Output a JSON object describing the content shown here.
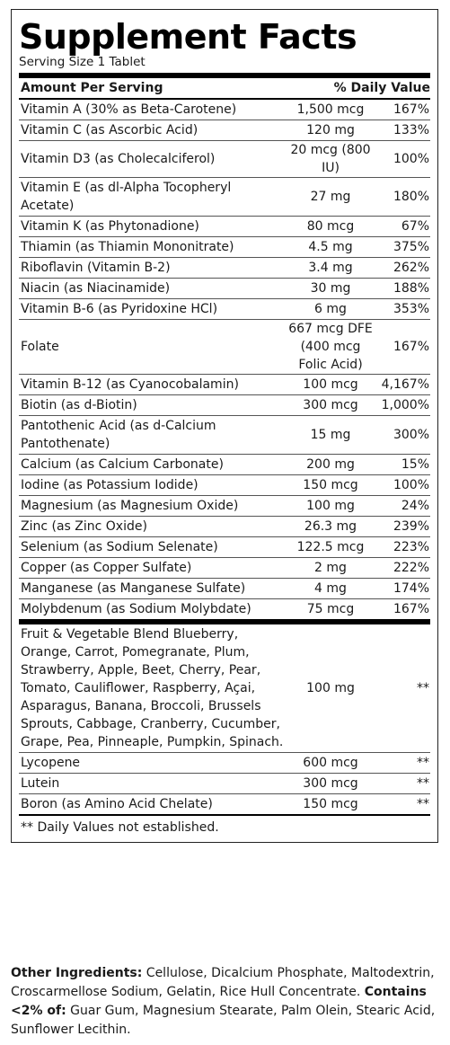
{
  "title": "Supplement Facts",
  "serving_size": "Serving Size 1 Tablet",
  "header": {
    "amount_label": "Amount Per Serving",
    "dv_label": "% Daily Value"
  },
  "nutrients": [
    {
      "name": "Vitamin A (30% as Beta-Carotene)",
      "amount": "1,500 mcg",
      "dv": "167%"
    },
    {
      "name": "Vitamin C (as Ascorbic Acid)",
      "amount": "120 mg",
      "dv": "133%"
    },
    {
      "name": "Vitamin D3 (as Cholecalciferol)",
      "amount": "20 mcg (800 IU)",
      "dv": "100%"
    },
    {
      "name": "Vitamin E (as dl-Alpha Tocopheryl Acetate)",
      "amount": "27 mg",
      "dv": "180%"
    },
    {
      "name": "Vitamin K (as Phytonadione)",
      "amount": "80 mcg",
      "dv": "67%"
    },
    {
      "name": "Thiamin (as Thiamin Mononitrate)",
      "amount": "4.5 mg",
      "dv": "375%"
    },
    {
      "name": "Riboflavin (Vitamin B-2)",
      "amount": "3.4 mg",
      "dv": "262%"
    },
    {
      "name": "Niacin (as Niacinamide)",
      "amount": "30 mg",
      "dv": "188%"
    },
    {
      "name": "Vitamin B-6 (as Pyridoxine HCl)",
      "amount": "6 mg",
      "dv": "353%"
    },
    {
      "name": "Folate",
      "amount": "667 mcg DFE (400 mcg Folic Acid)",
      "dv": "167%"
    },
    {
      "name": "Vitamin B-12 (as Cyanocobalamin)",
      "amount": "100 mcg",
      "dv": "4,167%"
    },
    {
      "name": "Biotin (as d-Biotin)",
      "amount": "300 mcg",
      "dv": "1,000%"
    },
    {
      "name": "Pantothenic Acid (as d-Calcium Pantothenate)",
      "amount": "15 mg",
      "dv": "300%"
    },
    {
      "name": "Calcium (as Calcium Carbonate)",
      "amount": "200 mg",
      "dv": "15%"
    },
    {
      "name": "Iodine (as Potassium Iodide)",
      "amount": "150 mcg",
      "dv": "100%"
    },
    {
      "name": "Magnesium (as Magnesium Oxide)",
      "amount": "100 mg",
      "dv": "24%"
    },
    {
      "name": "Zinc (as Zinc Oxide)",
      "amount": "26.3 mg",
      "dv": "239%"
    },
    {
      "name": "Selenium (as Sodium Selenate)",
      "amount": "122.5 mcg",
      "dv": "223%"
    },
    {
      "name": "Copper (as Copper Sulfate)",
      "amount": "2 mg",
      "dv": "222%"
    },
    {
      "name": "Manganese (as Manganese Sulfate)",
      "amount": "4 mg",
      "dv": "174%"
    },
    {
      "name": "Molybdenum (as Sodium Molybdate)",
      "amount": "75 mcg",
      "dv": "167%"
    }
  ],
  "others": [
    {
      "name": "Fruit & Vegetable Blend Blueberry, Orange, Carrot, Pomegranate, Plum, Strawberry, Apple, Beet, Cherry, Pear, Tomato, Cauliflower, Raspberry, Açai, Asparagus, Banana, Broccoli, Brussels Sprouts, Cabbage, Cranberry, Cucumber, Grape, Pea, Pinneaple, Pumpkin, Spinach.",
      "amount": "100 mg",
      "dv": "**"
    },
    {
      "name": "Lycopene",
      "amount": "600 mcg",
      "dv": "**"
    },
    {
      "name": "Lutein",
      "amount": "300 mcg",
      "dv": "**"
    },
    {
      "name": "Boron (as Amino Acid Chelate)",
      "amount": "150 mcg",
      "dv": "**"
    }
  ],
  "footnote": "** Daily Values not established.",
  "other_ingredients": {
    "label": "Other Ingredients:",
    "text": " Cellulose, Dicalcium Phosphate, Maltodextrin, Croscarmellose Sodium, Gelatin, Rice Hull Concentrate. ",
    "contains_label": "Contains <2% of:",
    "contains_text": " Guar Gum, Magnesium Stearate, Palm Olein, Stearic Acid, Sunflower Lecithin."
  }
}
